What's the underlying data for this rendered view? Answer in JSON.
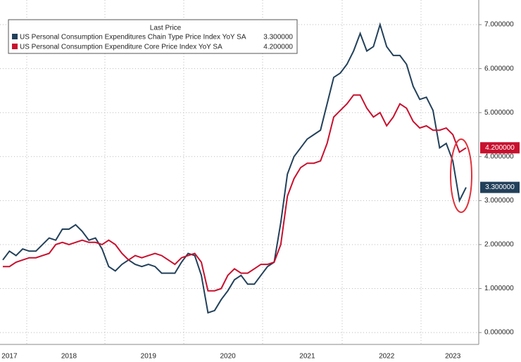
{
  "chart_data": {
    "type": "line",
    "legend_title": "Last Price",
    "categories": [
      null,
      "2017",
      null,
      null,
      null,
      null,
      null,
      null,
      null,
      null,
      "2018",
      null,
      null,
      null,
      null,
      null,
      null,
      null,
      null,
      null,
      null,
      null,
      "2019",
      null,
      null,
      null,
      null,
      null,
      null,
      null,
      null,
      null,
      null,
      null,
      "2020",
      null,
      null,
      null,
      null,
      null,
      null,
      null,
      null,
      null,
      null,
      null,
      "2021",
      null,
      null,
      null,
      null,
      null,
      null,
      null,
      null,
      null,
      null,
      null,
      "2022",
      null,
      null,
      null,
      null,
      null,
      null,
      null,
      null,
      null,
      "2023",
      null,
      null
    ],
    "series": [
      {
        "name": "US Personal Consumption Expenditures Chain Type Price Index YoY SA",
        "color": "#22405a",
        "last_label": "3.300000",
        "values": [
          1.65,
          1.85,
          1.75,
          1.9,
          1.85,
          1.85,
          2.0,
          2.15,
          2.1,
          2.35,
          2.35,
          2.45,
          2.3,
          2.1,
          2.15,
          1.9,
          1.5,
          1.4,
          1.55,
          1.65,
          1.55,
          1.5,
          1.55,
          1.5,
          1.35,
          1.35,
          1.35,
          1.6,
          1.8,
          1.75,
          1.3,
          0.45,
          0.5,
          0.75,
          0.95,
          1.2,
          1.3,
          1.1,
          1.1,
          1.3,
          1.5,
          1.6,
          2.5,
          3.6,
          4.0,
          4.2,
          4.4,
          4.5,
          4.6,
          5.2,
          5.8,
          5.9,
          6.1,
          6.4,
          6.8,
          6.4,
          6.5,
          7.0,
          6.5,
          6.3,
          6.3,
          6.1,
          5.6,
          5.3,
          5.35,
          5.05,
          4.2,
          4.3,
          3.9,
          3.0,
          3.3
        ]
      },
      {
        "name": "US Personal Consumption Expenditure Core Price Index YoY SA",
        "color": "#c8102e",
        "last_label": "4.200000",
        "values": [
          1.5,
          1.5,
          1.6,
          1.65,
          1.7,
          1.7,
          1.75,
          1.8,
          2.0,
          2.05,
          2.0,
          2.05,
          2.1,
          2.05,
          2.05,
          2.0,
          2.1,
          2.0,
          1.8,
          1.65,
          1.75,
          1.7,
          1.75,
          1.8,
          1.75,
          1.65,
          1.55,
          1.7,
          1.75,
          1.8,
          1.6,
          0.95,
          0.95,
          1.0,
          1.3,
          1.45,
          1.35,
          1.35,
          1.45,
          1.55,
          1.55,
          1.6,
          2.0,
          3.1,
          3.5,
          3.75,
          3.85,
          3.85,
          3.9,
          4.3,
          4.9,
          5.05,
          5.2,
          5.4,
          5.4,
          5.1,
          4.9,
          5.0,
          4.7,
          4.9,
          5.2,
          5.1,
          4.8,
          4.65,
          4.7,
          4.6,
          4.6,
          4.65,
          4.5,
          4.1,
          4.2
        ]
      }
    ],
    "ylim": [
      -0.27,
      7.56
    ],
    "yticks": [
      {
        "value": 0,
        "label": "0.000000"
      },
      {
        "value": 1,
        "label": "1.000000"
      },
      {
        "value": 2,
        "label": "2.000000"
      },
      {
        "value": 3,
        "label": "3.000000"
      },
      {
        "value": 4,
        "label": "4.000000"
      },
      {
        "value": 5,
        "label": "5.000000"
      },
      {
        "value": 6,
        "label": "6.000000"
      },
      {
        "value": 7,
        "label": "7.000000"
      }
    ],
    "grid": true
  }
}
